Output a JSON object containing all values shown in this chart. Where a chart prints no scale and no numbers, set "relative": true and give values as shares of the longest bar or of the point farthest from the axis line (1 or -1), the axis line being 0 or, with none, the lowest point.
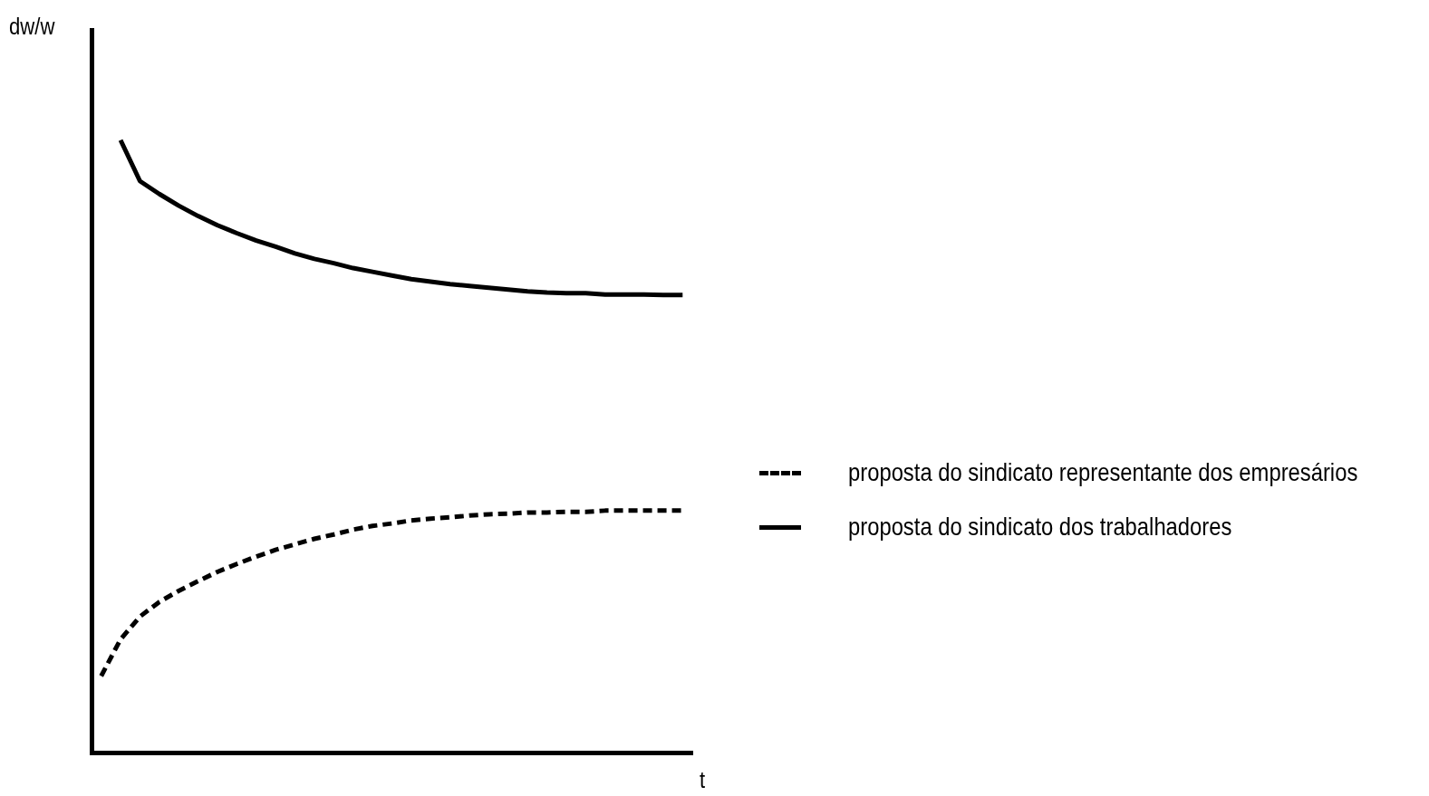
{
  "chart_data": {
    "type": "line",
    "relative": true,
    "xlabel": "t",
    "ylabel": "dw/w",
    "legend": "right",
    "marker": "none",
    "grid": false,
    "categories": [
      null,
      null,
      null,
      null,
      null,
      null,
      null,
      null,
      null,
      null,
      null,
      null,
      null,
      null,
      null,
      null,
      null,
      null,
      null,
      null,
      null,
      null,
      null,
      null,
      null,
      null,
      null,
      null,
      null,
      null,
      null
    ],
    "series": [
      {
        "name": "proposta do sindicato representante dos empresários",
        "color": "#000000",
        "line_style": "dashed",
        "values": [
          0.125,
          0.185,
          0.222,
          0.246,
          0.264,
          0.28,
          0.295,
          0.308,
          0.32,
          0.331,
          0.34,
          0.349,
          0.356,
          0.364,
          0.37,
          0.374,
          0.379,
          0.382,
          0.384,
          0.387,
          0.389,
          0.39,
          0.392,
          0.392,
          0.393,
          0.393,
          0.395,
          0.395,
          0.395,
          0.395,
          0.395
        ]
      },
      {
        "name": "proposta do sindicato dos trabalhadores",
        "color": "#000000",
        "line_style": "solid",
        "values": [
          null,
          1.0,
          0.933,
          0.912,
          0.893,
          0.876,
          0.861,
          0.848,
          0.836,
          0.826,
          0.815,
          0.806,
          0.799,
          0.791,
          0.785,
          0.779,
          0.773,
          0.769,
          0.765,
          0.762,
          0.759,
          0.756,
          0.753,
          0.751,
          0.75,
          0.75,
          0.748,
          0.748,
          0.748,
          0.747,
          0.747
        ]
      }
    ]
  }
}
